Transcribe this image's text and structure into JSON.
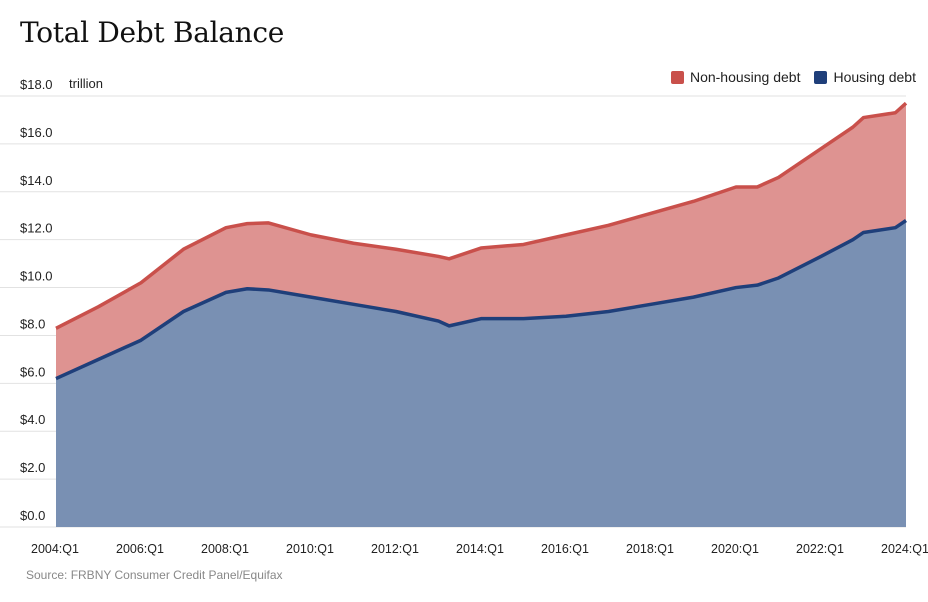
{
  "title": "Total Debt Balance",
  "source": "Source: FRBNY Consumer Credit Panel/Equifax",
  "chart_data": {
    "type": "area",
    "stacked": true,
    "title": "Total Debt Balance",
    "ylabel": "trillion",
    "y_ticks": [
      "$0.0",
      "$2.0",
      "$4.0",
      "$6.0",
      "$8.0",
      "$10.0",
      "$12.0",
      "$14.0",
      "$16.0",
      "$18.0"
    ],
    "ylim": [
      0,
      18
    ],
    "x_ticks": [
      "2004:Q1",
      "2006:Q1",
      "2008:Q1",
      "2010:Q1",
      "2012:Q1",
      "2014:Q1",
      "2016:Q1",
      "2018:Q1",
      "2020:Q1",
      "2022:Q1",
      "2024:Q1"
    ],
    "grid": true,
    "legend_position": "top-right",
    "x": [
      "2004:Q1",
      "2005:Q1",
      "2006:Q1",
      "2007:Q1",
      "2008:Q1",
      "2008:Q3",
      "2009:Q1",
      "2010:Q1",
      "2011:Q1",
      "2012:Q1",
      "2013:Q1",
      "2013:Q2",
      "2014:Q1",
      "2015:Q1",
      "2016:Q1",
      "2017:Q1",
      "2018:Q1",
      "2019:Q1",
      "2020:Q1",
      "2020:Q3",
      "2021:Q1",
      "2022:Q1",
      "2022:Q4",
      "2023:Q1",
      "2023:Q4",
      "2024:Q1"
    ],
    "series": [
      {
        "name": "Housing debt",
        "color": "#1f3f7a",
        "fill": "#7990b3",
        "values": [
          6.2,
          7.0,
          7.8,
          9.0,
          9.8,
          9.95,
          9.9,
          9.6,
          9.3,
          9.0,
          8.6,
          8.4,
          8.7,
          8.7,
          8.8,
          9.0,
          9.3,
          9.6,
          10.0,
          10.1,
          10.4,
          11.3,
          12.0,
          12.3,
          12.5,
          12.8
        ]
      },
      {
        "name": "Non-housing debt",
        "color": "#c9504b",
        "fill": "#de9391",
        "values": [
          2.1,
          2.2,
          2.4,
          2.6,
          2.7,
          2.72,
          2.8,
          2.6,
          2.55,
          2.6,
          2.7,
          2.8,
          2.95,
          3.1,
          3.4,
          3.6,
          3.8,
          4.0,
          4.2,
          4.1,
          4.2,
          4.5,
          4.7,
          4.8,
          4.8,
          4.9
        ]
      }
    ]
  }
}
